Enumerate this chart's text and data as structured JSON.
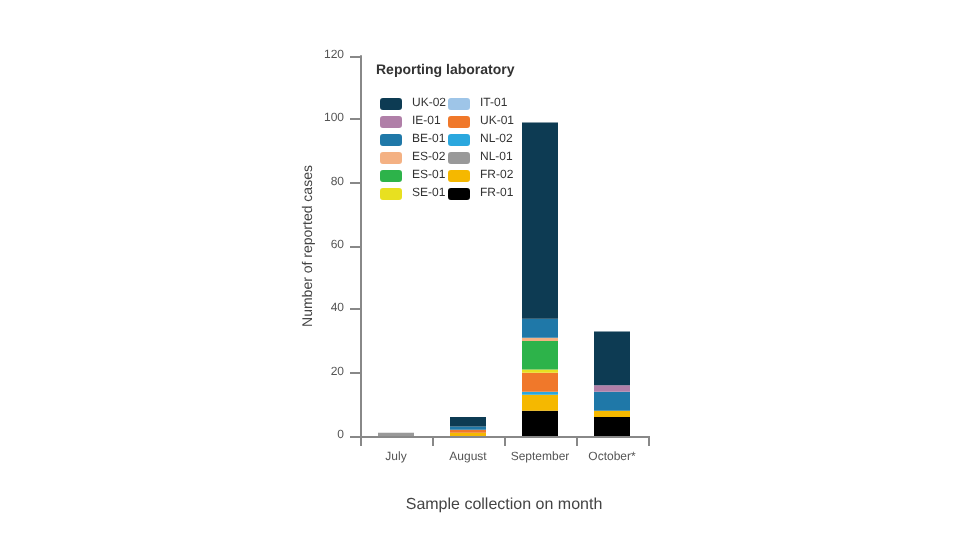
{
  "chart_data": {
    "type": "bar",
    "stacked": true,
    "xlabel": "Sample collection on month",
    "ylabel": "Number of reported cases",
    "legend_title": "Reporting laboratory",
    "legend": "top left",
    "grid": false,
    "categories": [
      "July",
      "August",
      "September",
      "October*"
    ],
    "ylim": [
      0,
      120
    ],
    "yticks": [
      0,
      20,
      40,
      60,
      80,
      100,
      120
    ],
    "series": [
      {
        "name": "FR-01",
        "color": "#000000",
        "values": [
          null,
          null,
          8,
          6
        ]
      },
      {
        "name": "FR-02",
        "color": "#f5b800",
        "values": [
          null,
          1,
          5,
          2
        ]
      },
      {
        "name": "NL-01",
        "color": "#999999",
        "values": [
          1,
          null,
          null,
          null
        ]
      },
      {
        "name": "NL-02",
        "color": "#2aa7de",
        "values": [
          null,
          null,
          1,
          null
        ]
      },
      {
        "name": "UK-01",
        "color": "#f0782a",
        "values": [
          null,
          1,
          6,
          null
        ]
      },
      {
        "name": "IT-01",
        "color": "#9ec5e8",
        "values": [
          null,
          null,
          null,
          null
        ]
      },
      {
        "name": "SE-01",
        "color": "#e8e020",
        "values": [
          null,
          null,
          1,
          null
        ]
      },
      {
        "name": "ES-01",
        "color": "#2db34a",
        "values": [
          null,
          null,
          9,
          null
        ]
      },
      {
        "name": "ES-02",
        "color": "#f4b183",
        "values": [
          null,
          null,
          1,
          null
        ]
      },
      {
        "name": "BE-01",
        "color": "#1f78a8",
        "values": [
          null,
          1,
          6,
          6
        ]
      },
      {
        "name": "IE-01",
        "color": "#b07fa8",
        "values": [
          null,
          null,
          null,
          2
        ]
      },
      {
        "name": "UK-02",
        "color": "#0d3b53",
        "values": [
          null,
          3,
          62,
          17
        ]
      }
    ]
  }
}
